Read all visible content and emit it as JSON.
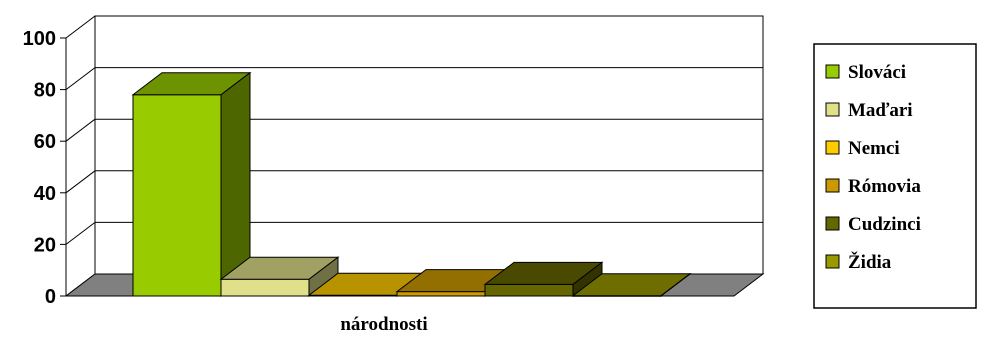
{
  "chart_data": {
    "type": "bar",
    "title": "",
    "xlabel": "národnosti",
    "ylabel": "",
    "categories": [
      "národnosti"
    ],
    "ylim": [
      0,
      100
    ],
    "yticks": [
      0,
      20,
      40,
      60,
      80,
      100
    ],
    "grid": true,
    "legend_position": "right",
    "series": [
      {
        "name": "Slováci",
        "values": [
          78
        ],
        "color": "#99cc00"
      },
      {
        "name": "Maďari",
        "values": [
          6.5
        ],
        "color": "#e0e08a"
      },
      {
        "name": "Nemci",
        "values": [
          0.3
        ],
        "color": "#ffcc00"
      },
      {
        "name": "Rómovia",
        "values": [
          1.7
        ],
        "color": "#cc9900"
      },
      {
        "name": "Cudzinci",
        "values": [
          4.5
        ],
        "color": "#666600"
      },
      {
        "name": "Židia",
        "values": [
          0.1
        ],
        "color": "#999900"
      }
    ],
    "colors": {
      "floor": "#808080",
      "background": "#ffffff",
      "gridline": "#000000"
    }
  }
}
